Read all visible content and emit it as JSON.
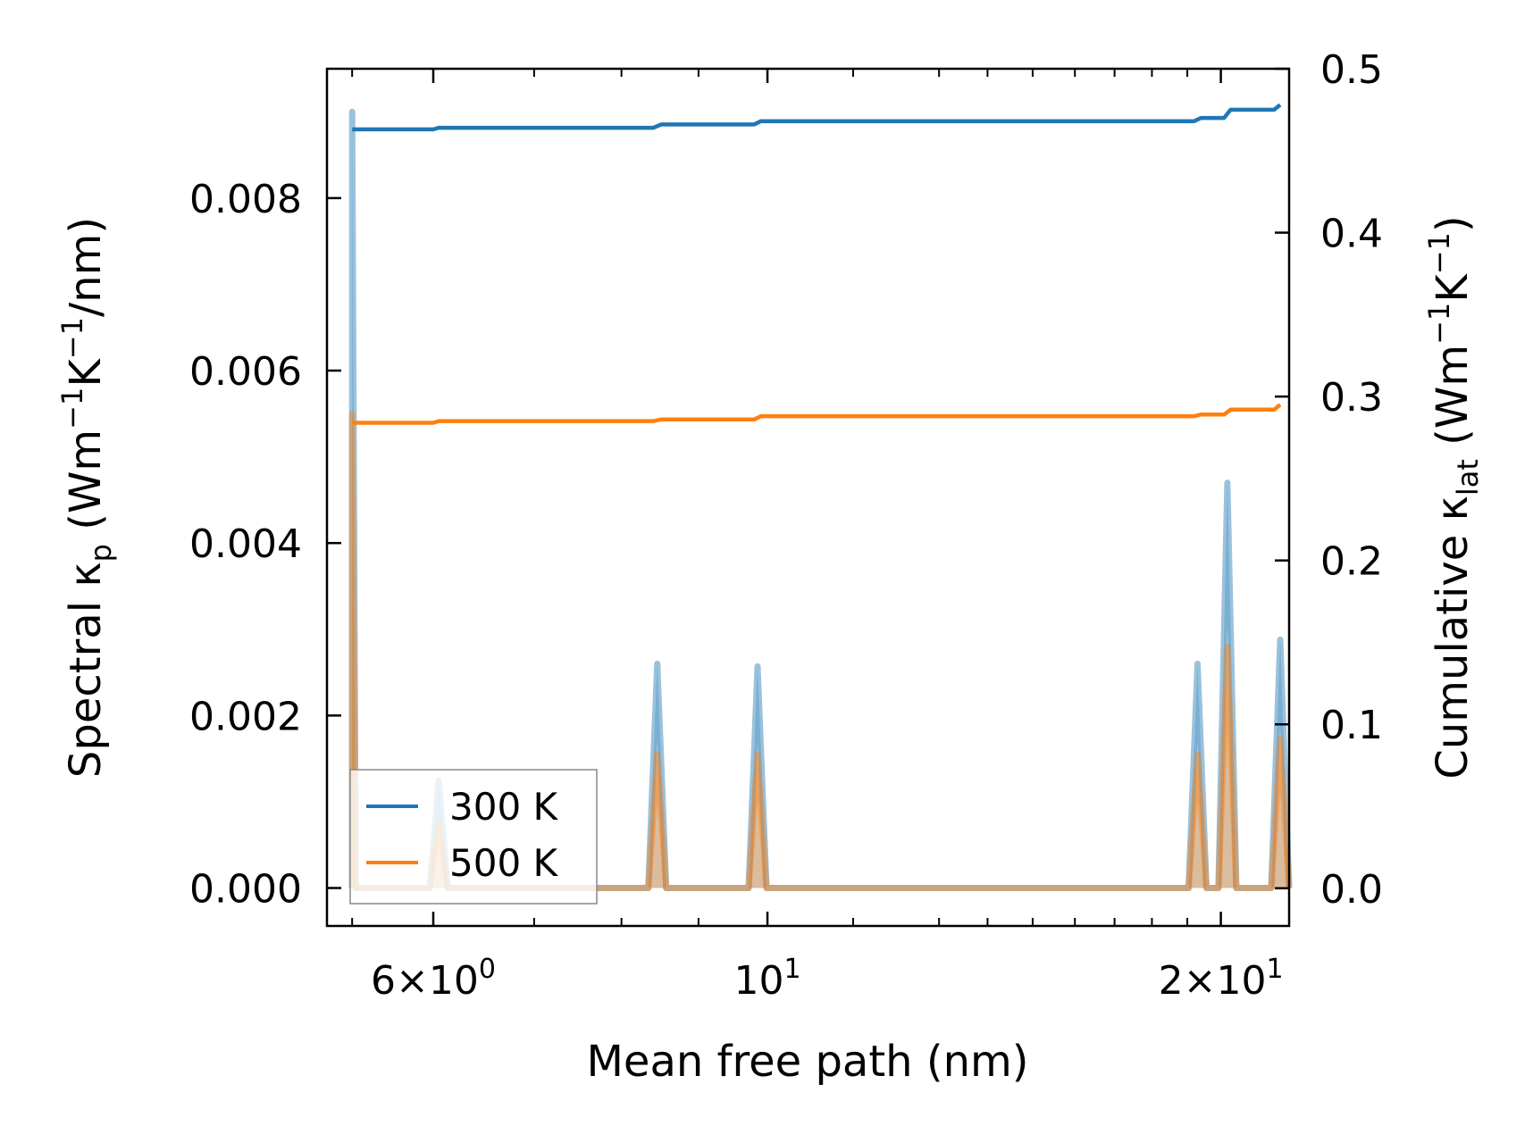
{
  "chart_data": {
    "type": "line",
    "x_scale": "log",
    "xlabel": "Mean free path (nm)",
    "ylabel_left": {
      "main": "Spectral κ",
      "sub": "p",
      "unit_prefix": " (Wm",
      "sup1": "−1",
      "mid": "K",
      "sup2": "−1",
      "unit_suffix": "/nm)"
    },
    "ylabel_right": {
      "main": "Cumulative κ",
      "sub": "lat",
      "unit_prefix": " (Wm",
      "sup1": "−1",
      "mid": "K",
      "sup2": "−1",
      "unit_suffix": ")"
    },
    "xlim": [
      5.1,
      22.2
    ],
    "ylim_left": [
      -0.00044,
      0.0095
    ],
    "ylim_right": [
      -0.023,
      0.5
    ],
    "x_major_ticks": [
      {
        "value": 6,
        "base": "6",
        "exp": "0",
        "has_mult": true
      },
      {
        "value": 10,
        "base": "10",
        "exp": "1",
        "has_mult": false
      },
      {
        "value": 20,
        "base": "2",
        "exp": "1",
        "has_mult": true
      }
    ],
    "x_minor_ticks": [
      5.3,
      7,
      8,
      9,
      11.4,
      13,
      14,
      15,
      16,
      17,
      18,
      19
    ],
    "y_left_ticks": [
      0.0,
      0.002,
      0.004,
      0.006,
      0.008
    ],
    "y_left_tick_labels": [
      "0.000",
      "0.002",
      "0.004",
      "0.006",
      "0.008"
    ],
    "y_right_ticks": [
      0.0,
      0.1,
      0.2,
      0.3,
      0.4,
      0.5
    ],
    "y_right_tick_labels": [
      "0.0",
      "0.1",
      "0.2",
      "0.3",
      "0.4",
      "0.5"
    ],
    "spectral_series": [
      {
        "name": "300 K",
        "color": "#1f77b4",
        "peaks": [
          [
            5.3,
            0.009
          ],
          [
            6.05,
            0.00125
          ],
          [
            8.45,
            0.0026
          ],
          [
            9.85,
            0.00257
          ],
          [
            19.3,
            0.0026
          ],
          [
            20.2,
            0.0047
          ],
          [
            21.9,
            0.00288
          ]
        ]
      },
      {
        "name": "500 K",
        "color": "#ff7f0e",
        "peaks": [
          [
            5.3,
            0.0055
          ],
          [
            6.05,
            0.00075
          ],
          [
            8.45,
            0.00155
          ],
          [
            9.85,
            0.00155
          ],
          [
            19.3,
            0.00155
          ],
          [
            20.2,
            0.0028
          ],
          [
            21.9,
            0.00173
          ]
        ]
      }
    ],
    "cumulative_series": [
      {
        "name": "300 K",
        "color": "#1f77b4",
        "points": [
          [
            5.3,
            0.463
          ],
          [
            6.0,
            0.463
          ],
          [
            6.05,
            0.464
          ],
          [
            8.4,
            0.464
          ],
          [
            8.5,
            0.466
          ],
          [
            9.8,
            0.466
          ],
          [
            9.9,
            0.468
          ],
          [
            19.2,
            0.468
          ],
          [
            19.4,
            0.47
          ],
          [
            20.1,
            0.47
          ],
          [
            20.3,
            0.475
          ],
          [
            21.7,
            0.475
          ],
          [
            21.9,
            0.478
          ]
        ]
      },
      {
        "name": "500 K",
        "color": "#ff7f0e",
        "points": [
          [
            5.3,
            0.284
          ],
          [
            6.0,
            0.284
          ],
          [
            6.05,
            0.285
          ],
          [
            8.4,
            0.285
          ],
          [
            8.5,
            0.286
          ],
          [
            9.8,
            0.286
          ],
          [
            9.9,
            0.288
          ],
          [
            19.2,
            0.288
          ],
          [
            19.4,
            0.289
          ],
          [
            20.1,
            0.289
          ],
          [
            20.3,
            0.292
          ],
          [
            21.7,
            0.292
          ],
          [
            21.9,
            0.295
          ]
        ]
      }
    ],
    "legend": {
      "placement": "lower-left",
      "entries": [
        "300 K",
        "500 K"
      ]
    }
  }
}
